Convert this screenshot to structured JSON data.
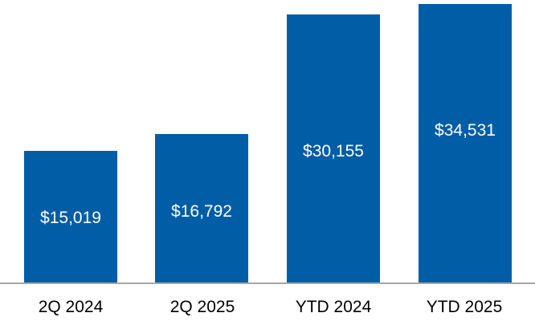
{
  "chart_data": {
    "type": "bar",
    "title": "",
    "categories": [
      "2Q 2024",
      "2Q 2025",
      "YTD 2024",
      "YTD 2025"
    ],
    "values": [
      15019,
      16792,
      30155,
      34531
    ],
    "value_labels": [
      "$15,019",
      "$16,792",
      "$30,155",
      "$34,531"
    ],
    "legend_position": "none",
    "gridlines": false,
    "y_axis_shown": false,
    "colors": {
      "bar": "#005DA6",
      "value_label_text": "#FFFFFF",
      "category_label_text": "#000000",
      "axis_line": "#A6A6A6",
      "background": "#FFFFFF"
    }
  }
}
